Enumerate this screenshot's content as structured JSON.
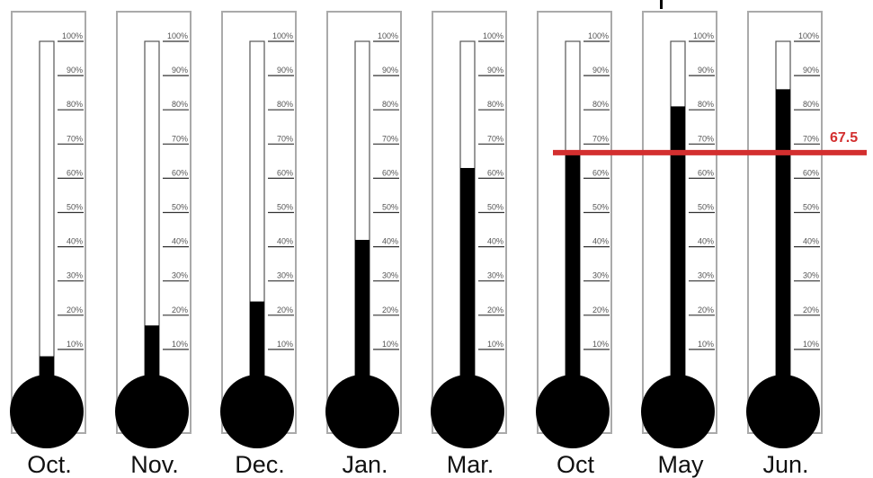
{
  "chart_data": {
    "type": "bar",
    "style": "thermometer",
    "categories": [
      "Oct.",
      "Nov.",
      "Dec.",
      "Jan.",
      "Mar.",
      "Oct",
      "May",
      "Jun."
    ],
    "values": [
      8,
      17,
      24,
      42,
      63,
      67,
      81,
      86
    ],
    "unit": "%",
    "ylim": [
      0,
      100
    ],
    "tick_labels": [
      "10%",
      "20%",
      "30%",
      "40%",
      "50%",
      "60%",
      "70%",
      "80%",
      "90%",
      "100%"
    ],
    "reference_line": {
      "value": 67.5,
      "label": "67.5"
    },
    "grid": false,
    "colors": {
      "fill": "#000000",
      "frame": "#aaaaaa",
      "tick": "#333333",
      "reference": "#d32f2f"
    }
  }
}
